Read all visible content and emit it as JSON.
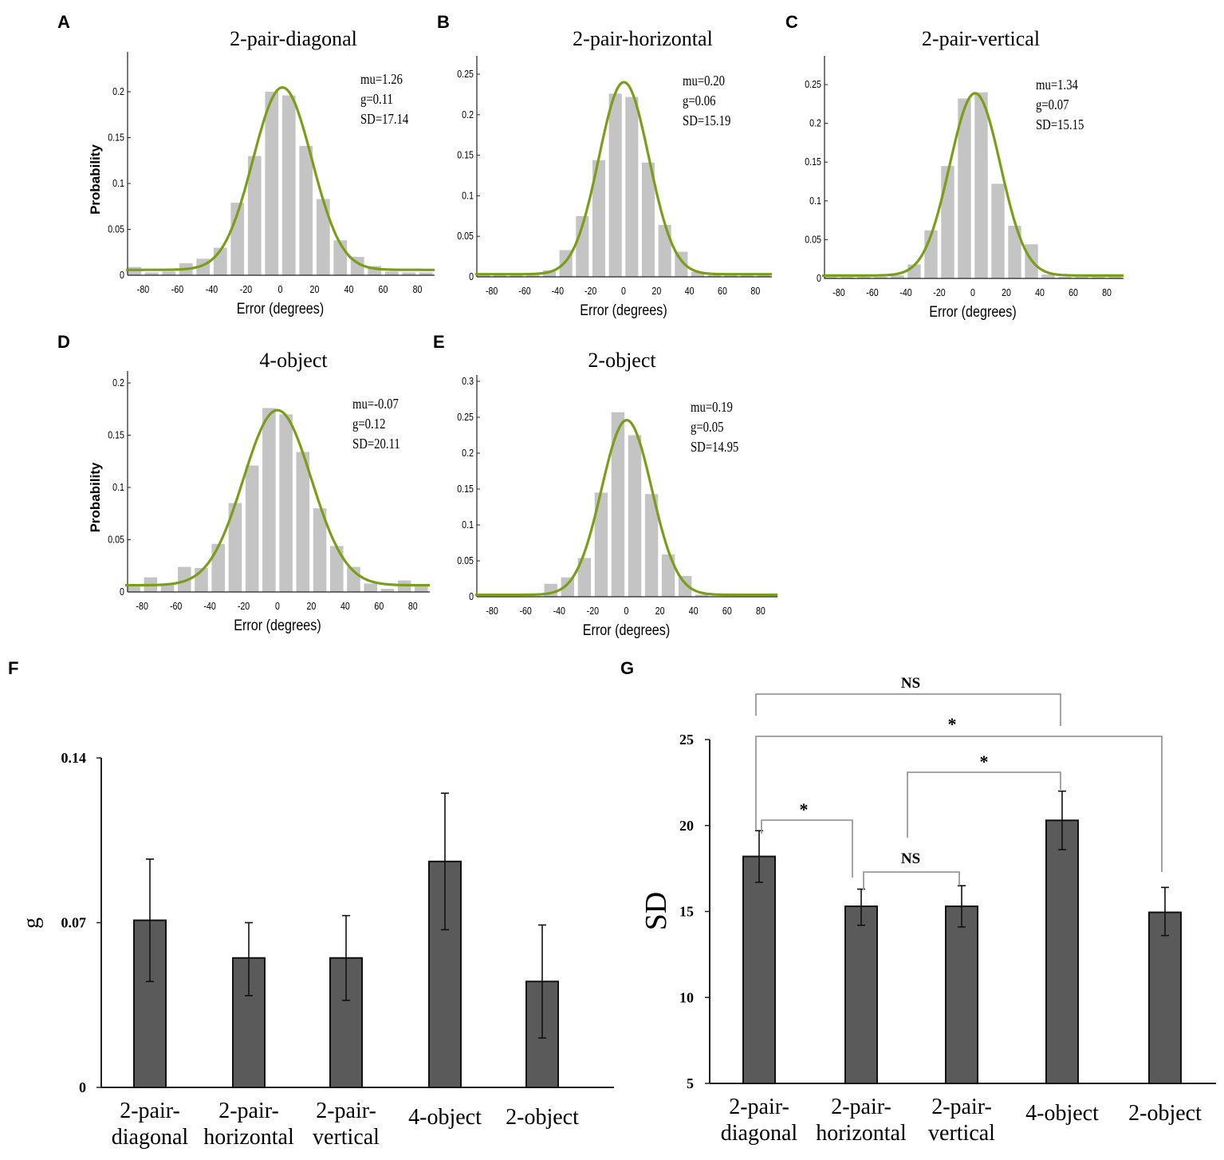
{
  "colors": {
    "hist_bar": "#c4c4c4",
    "fit_curve": "#7a9e1a",
    "summary_bar": "#5a5a5a",
    "axis": "#222222",
    "bracket": "#9a9a9a"
  },
  "chart_data": [
    {
      "panel": "A",
      "type": "bar",
      "title": "2-pair-diagonal",
      "xlabel": "Error (degrees)",
      "ylabel": "Probability",
      "xlim": [
        -90,
        90
      ],
      "ylim": [
        0,
        0.24
      ],
      "xticks": [
        "-80",
        "-60",
        "-40",
        "-20",
        "0",
        "20",
        "40",
        "60",
        "80"
      ],
      "yticks": [
        "0",
        "0.05",
        "0.1",
        "0.15",
        "0.2"
      ],
      "bin_centers": [
        -85,
        -75,
        -65,
        -55,
        -45,
        -35,
        -25,
        -15,
        -5,
        5,
        15,
        25,
        35,
        45,
        55,
        65,
        75,
        85
      ],
      "values": [
        0.009,
        0.003,
        0.004,
        0.013,
        0.018,
        0.03,
        0.079,
        0.13,
        0.2,
        0.196,
        0.141,
        0.083,
        0.038,
        0.02,
        0.01,
        0.004,
        0.003,
        0.003
      ],
      "fit": {
        "mu": 1.26,
        "g": 0.11,
        "SD": 17.14
      },
      "stats": [
        "mu=1.26",
        "g=0.11",
        "SD=17.14"
      ]
    },
    {
      "panel": "B",
      "type": "bar",
      "title": "2-pair-horizontal",
      "xlabel": "Error (degrees)",
      "ylabel": "",
      "xlim": [
        -90,
        90
      ],
      "ylim": [
        0,
        0.27
      ],
      "xticks": [
        "-80",
        "-60",
        "-40",
        "-20",
        "0",
        "20",
        "40",
        "60",
        "80"
      ],
      "yticks": [
        "0",
        "0.05",
        "0.1",
        "0.15",
        "0.2",
        "0.25"
      ],
      "bin_centers": [
        -85,
        -75,
        -65,
        -55,
        -45,
        -35,
        -25,
        -15,
        -5,
        5,
        15,
        25,
        35,
        45,
        55,
        65,
        75,
        85
      ],
      "values": [
        0.002,
        0.002,
        0.002,
        0.002,
        0.008,
        0.033,
        0.075,
        0.144,
        0.226,
        0.222,
        0.141,
        0.064,
        0.031,
        0.006,
        0.002,
        0.002,
        0.002,
        0.002
      ],
      "fit": {
        "mu": 0.2,
        "g": 0.06,
        "SD": 15.19
      },
      "stats": [
        "mu=0.20",
        "g=0.06",
        "SD=15.19"
      ]
    },
    {
      "panel": "C",
      "type": "bar",
      "title": "2-pair-vertical",
      "xlabel": "Error (degrees)",
      "ylabel": "",
      "xlim": [
        -90,
        90
      ],
      "ylim": [
        0,
        0.29
      ],
      "xticks": [
        "-80",
        "-60",
        "-40",
        "-20",
        "0",
        "20",
        "40",
        "60",
        "80"
      ],
      "yticks": [
        "0",
        "0.05",
        "0.1",
        "0.15",
        "0.2",
        "0.25"
      ],
      "bin_centers": [
        -85,
        -75,
        -65,
        -55,
        -45,
        -35,
        -25,
        -15,
        -5,
        5,
        15,
        25,
        35,
        45,
        55,
        65,
        75,
        85
      ],
      "values": [
        0.002,
        0.002,
        0.002,
        0.002,
        0.004,
        0.018,
        0.062,
        0.145,
        0.232,
        0.24,
        0.122,
        0.068,
        0.044,
        0.005,
        0.002,
        0.002,
        0.002,
        0.002
      ],
      "fit": {
        "mu": 1.34,
        "g": 0.07,
        "SD": 15.15
      },
      "stats": [
        "mu=1.34",
        "g=0.07",
        "SD=15.15"
      ]
    },
    {
      "panel": "D",
      "type": "bar",
      "title": "4-object",
      "xlabel": "Error (degrees)",
      "ylabel": "Probability",
      "xlim": [
        -90,
        90
      ],
      "ylim": [
        0,
        0.21
      ],
      "xticks": [
        "-80",
        "-60",
        "-40",
        "-20",
        "0",
        "20",
        "40",
        "60",
        "80"
      ],
      "yticks": [
        "0",
        "0.05",
        "0.1",
        "0.15",
        "0.2"
      ],
      "bin_centers": [
        -85,
        -75,
        -65,
        -55,
        -45,
        -35,
        -25,
        -15,
        -5,
        5,
        15,
        25,
        35,
        45,
        55,
        65,
        75,
        85
      ],
      "values": [
        0.005,
        0.014,
        0.007,
        0.024,
        0.023,
        0.046,
        0.085,
        0.121,
        0.176,
        0.17,
        0.134,
        0.08,
        0.044,
        0.024,
        0.008,
        0.003,
        0.011,
        0.005
      ],
      "fit": {
        "mu": -0.07,
        "g": 0.12,
        "SD": 20.11
      },
      "stats": [
        "mu=-0.07",
        "g=0.12",
        "SD=20.11"
      ]
    },
    {
      "panel": "E",
      "type": "bar",
      "title": "2-object",
      "xlabel": "Error (degrees)",
      "ylabel": "",
      "xlim": [
        -90,
        90
      ],
      "ylim": [
        0,
        0.305
      ],
      "xticks": [
        "-80",
        "-60",
        "-40",
        "-20",
        "0",
        "20",
        "40",
        "60",
        "80"
      ],
      "yticks": [
        "0",
        "0.05",
        "0.1",
        "0.15",
        "0.2",
        "0.25",
        "0.3"
      ],
      "bin_centers": [
        -85,
        -75,
        -65,
        -55,
        -45,
        -35,
        -25,
        -15,
        -5,
        5,
        15,
        25,
        35,
        45,
        55,
        65,
        75,
        85
      ],
      "values": [
        0,
        0,
        0,
        0,
        0.018,
        0.027,
        0.054,
        0.145,
        0.257,
        0.225,
        0.143,
        0.059,
        0.029,
        0.003,
        0,
        0,
        0,
        0
      ],
      "fit": {
        "mu": 0.19,
        "g": 0.05,
        "SD": 14.95
      },
      "stats": [
        "mu=0.19",
        "g=0.05",
        "SD=14.95"
      ]
    },
    {
      "panel": "F",
      "type": "bar",
      "title": "",
      "xlabel": "",
      "ylabel": "g",
      "ylim": [
        0,
        0.14
      ],
      "yticks": [
        "0",
        "0.07",
        "0.14"
      ],
      "categories": [
        [
          "2-pair-",
          "diagonal"
        ],
        [
          "2-pair-",
          "horizontal"
        ],
        [
          "2-pair-",
          "vertical"
        ],
        [
          "4-object"
        ],
        [
          "2-object"
        ]
      ],
      "values": [
        0.071,
        0.055,
        0.055,
        0.096,
        0.045
      ],
      "error_low": [
        0.045,
        0.039,
        0.037,
        0.067,
        0.021
      ],
      "error_high": [
        0.097,
        0.07,
        0.073,
        0.125,
        0.069
      ]
    },
    {
      "panel": "G",
      "type": "bar",
      "title": "",
      "xlabel": "",
      "ylabel": "SD",
      "ylim": [
        5,
        25
      ],
      "yticks": [
        "5",
        "10",
        "15",
        "20",
        "25"
      ],
      "categories": [
        [
          "2-pair-",
          "diagonal"
        ],
        [
          "2-pair-",
          "horizontal"
        ],
        [
          "2-pair-",
          "vertical"
        ],
        [
          "4-object"
        ],
        [
          "2-object"
        ]
      ],
      "values": [
        18.2,
        15.3,
        15.3,
        20.3,
        14.95
      ],
      "error_low": [
        16.7,
        14.2,
        14.1,
        18.6,
        13.6
      ],
      "error_high": [
        19.7,
        16.3,
        16.5,
        22.0,
        16.4
      ],
      "significance": [
        {
          "between": [
            "2-pair-diagonal",
            "4-object"
          ],
          "label": "NS"
        },
        {
          "between": [
            "2-pair-diagonal",
            "2-object"
          ],
          "label": "*"
        },
        {
          "between": [
            "2-pair-horizontal/vertical",
            "4-object"
          ],
          "label": "*"
        },
        {
          "between": [
            "2-pair-diagonal",
            "2-pair-horizontal"
          ],
          "label": "*"
        },
        {
          "between": [
            "2-pair-horizontal",
            "2-pair-vertical"
          ],
          "label": "NS"
        }
      ]
    }
  ]
}
